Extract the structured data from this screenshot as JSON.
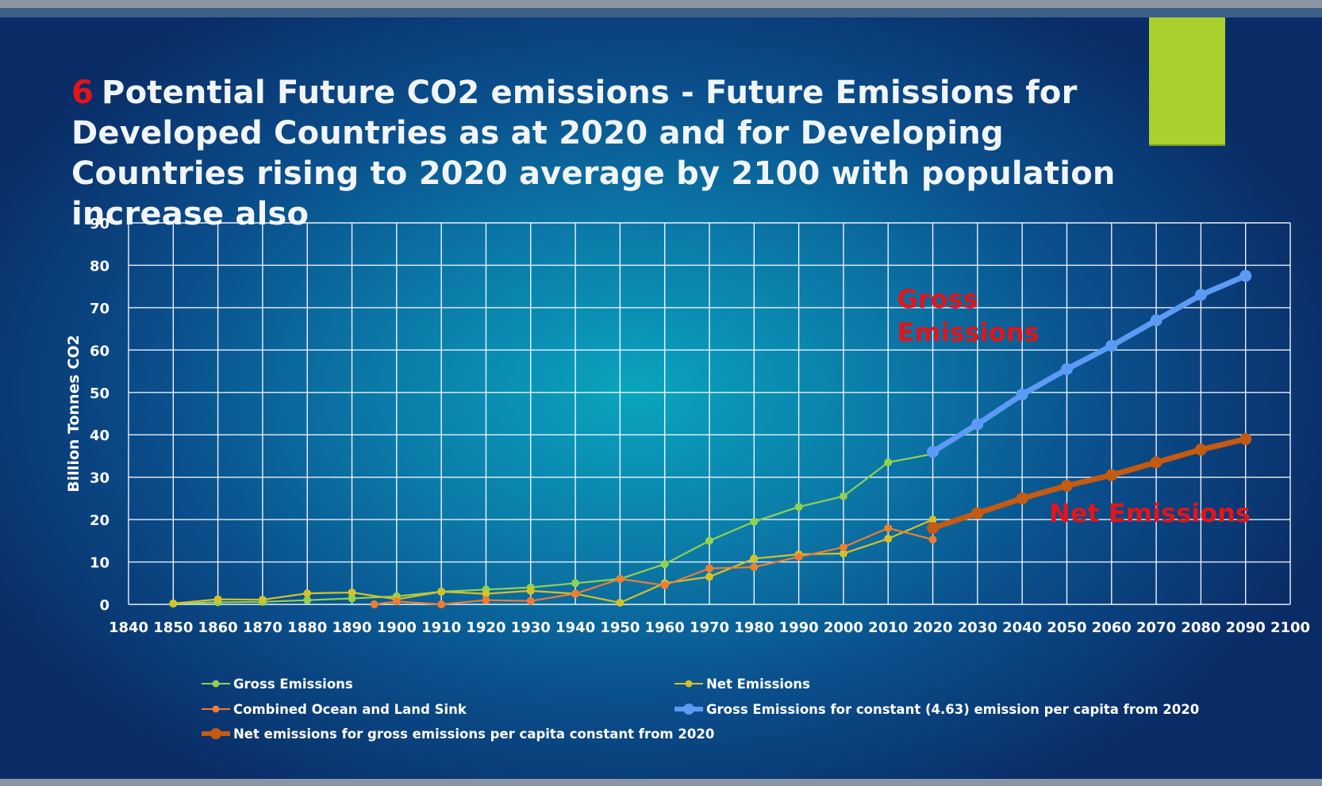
{
  "slide": {
    "number": "6",
    "title": "Potential  Future  CO2 emissions  - Future Emissions for Developed Countries as at 2020 and for Developing Countries rising to 2020 average by 2100 with population increase also",
    "colors": {
      "background": "#0a4f8c",
      "accent_block": "#a8d12e",
      "title_number": "#e3141a",
      "annotation": "#e3141a"
    }
  },
  "chart_data": {
    "type": "line",
    "title": "",
    "xlabel": "",
    "ylabel": "Billion Tonnes CO2",
    "xlim": [
      1840,
      2100
    ],
    "ylim": [
      0,
      90
    ],
    "x_ticks": [
      1840,
      1850,
      1860,
      1870,
      1880,
      1890,
      1900,
      1910,
      1920,
      1930,
      1940,
      1950,
      1960,
      1970,
      1980,
      1990,
      2000,
      2010,
      2020,
      2030,
      2040,
      2050,
      2060,
      2070,
      2080,
      2090,
      2100
    ],
    "y_ticks": [
      0,
      10,
      20,
      30,
      40,
      50,
      60,
      70,
      80,
      90
    ],
    "grid": true,
    "legend_position": "bottom",
    "series": [
      {
        "name": "Gross Emissions",
        "color": "#92d050",
        "width": "thin",
        "x": [
          1850,
          1860,
          1870,
          1880,
          1890,
          1900,
          1910,
          1920,
          1930,
          1940,
          1950,
          1960,
          1970,
          1980,
          1990,
          2000,
          2010,
          2020
        ],
        "y": [
          0.2,
          0.5,
          0.6,
          1.0,
          1.4,
          1.9,
          3.0,
          3.5,
          4.0,
          5.0,
          6.0,
          9.5,
          15.0,
          19.5,
          23.0,
          25.5,
          33.5,
          35.5
        ]
      },
      {
        "name": "Net Emissions",
        "color": "#d4c12a",
        "width": "thin",
        "x": [
          1850,
          1860,
          1870,
          1880,
          1890,
          1900,
          1910,
          1920,
          1930,
          1940,
          1950,
          1960,
          1970,
          1980,
          1990,
          2000,
          2010,
          2020
        ],
        "y": [
          0.2,
          1.2,
          1.1,
          2.6,
          2.8,
          1.2,
          3.0,
          2.5,
          3.2,
          2.5,
          0.4,
          5.0,
          6.5,
          10.8,
          11.8,
          12.0,
          15.5,
          20.0
        ]
      },
      {
        "name": "Combined Ocean and Land Sink",
        "color": "#ed7d31",
        "width": "thin",
        "x": [
          1895,
          1900,
          1910,
          1920,
          1930,
          1940,
          1950,
          1960,
          1970,
          1980,
          1990,
          2000,
          2010,
          2020
        ],
        "y": [
          0.0,
          0.7,
          0.0,
          1.0,
          0.8,
          2.5,
          6.0,
          4.5,
          8.5,
          8.8,
          11.2,
          13.5,
          18.0,
          15.3
        ]
      },
      {
        "name": "Gross Emissions for constant (4.63) emission per capita from 2020",
        "color": "#5b9bf5",
        "width": "thick",
        "x": [
          2020,
          2030,
          2040,
          2050,
          2060,
          2070,
          2080,
          2090
        ],
        "y": [
          36.0,
          42.5,
          49.5,
          55.5,
          61.0,
          67.0,
          73.0,
          77.5
        ]
      },
      {
        "name": "Net emissions for gross emissions per capita constant from 2020",
        "color": "#c55a11",
        "width": "thick",
        "x": [
          2020,
          2030,
          2040,
          2050,
          2060,
          2070,
          2080,
          2090
        ],
        "y": [
          18.0,
          21.5,
          25.0,
          28.0,
          30.5,
          33.5,
          36.5,
          39.0
        ]
      }
    ],
    "annotations": [
      {
        "text": "Gross Emissions",
        "lines": [
          "Gross",
          "Emissions"
        ],
        "at": {
          "x": 2012,
          "y": 70
        }
      },
      {
        "text": "Net Emissions",
        "lines": [
          "Net Emissions"
        ],
        "at": {
          "x": 2046,
          "y": 19.5
        }
      }
    ]
  }
}
